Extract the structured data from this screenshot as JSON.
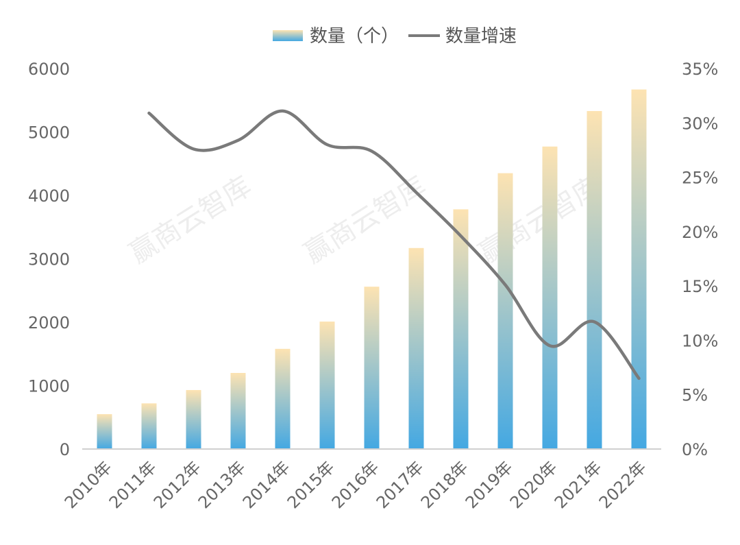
{
  "colors": {
    "bar_top": "#fde3b2",
    "bar_bottom": "#44a8e2",
    "line": "#7a7a7a",
    "axis": "#d0d0d0",
    "tick_text": "#666666"
  },
  "legend": {
    "bar_label": "数量（个）",
    "line_label": "数量增速"
  },
  "watermark": "赢商云智库",
  "chart_data": {
    "type": "bar",
    "categories": [
      "2010年",
      "2011年",
      "2012年",
      "2013年",
      "2014年",
      "2015年",
      "2016年",
      "2017年",
      "2018年",
      "2019年",
      "2020年",
      "2021年",
      "2022年"
    ],
    "series": [
      {
        "name": "数量（个）",
        "type": "bar",
        "axis": "left",
        "values": [
          550,
          720,
          930,
          1200,
          1580,
          2010,
          2560,
          3170,
          3780,
          4350,
          4770,
          5330,
          5670
        ]
      },
      {
        "name": "数量增速",
        "type": "line",
        "axis": "right",
        "unit": "%",
        "values": [
          null,
          30.9,
          27.6,
          28.4,
          31.1,
          28.0,
          27.4,
          23.6,
          19.6,
          15.1,
          9.5,
          11.7,
          6.5
        ]
      }
    ],
    "ylim": [
      0,
      6000
    ],
    "y_ticks": [
      "0",
      "1000",
      "2000",
      "3000",
      "4000",
      "5000",
      "6000"
    ],
    "y2lim": [
      0,
      35
    ],
    "y2_ticks": [
      "0%",
      "5%",
      "10%",
      "15%",
      "20%",
      "25%",
      "30%",
      "35%"
    ],
    "legend_position": "top",
    "grid": false
  }
}
